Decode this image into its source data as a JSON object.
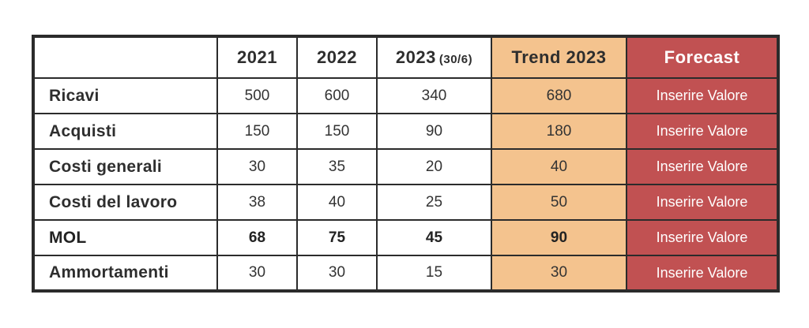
{
  "colors": {
    "trend_bg": "#f4c38e",
    "forecast_bg": "#c15152",
    "forecast_text": "#ffffff",
    "border": "#2b2b2b",
    "text": "#333333",
    "cell_bg": "#ffffff"
  },
  "header": {
    "empty": "",
    "y2021": "2021",
    "y2022": "2022",
    "y2023": "2023",
    "y2023_note": "(30/6)",
    "trend": "Trend 2023",
    "forecast": "Forecast"
  },
  "chart_data": {
    "type": "table",
    "title": "",
    "columns": [
      "",
      "2021",
      "2022",
      "2023 (30/6)",
      "Trend 2023",
      "Forecast"
    ],
    "rows": [
      [
        "Ricavi",
        500,
        600,
        340,
        680,
        "Inserire Valore"
      ],
      [
        "Acquisti",
        150,
        150,
        90,
        180,
        "Inserire Valore"
      ],
      [
        "Costi generali",
        30,
        35,
        20,
        40,
        "Inserire Valore"
      ],
      [
        "Costi del lavoro",
        38,
        40,
        25,
        50,
        "Inserire Valore"
      ],
      [
        "MOL",
        68,
        75,
        45,
        90,
        "Inserire Valore"
      ],
      [
        "Ammortamenti",
        30,
        30,
        15,
        30,
        "Inserire Valore"
      ]
    ],
    "emphasis_row": "MOL",
    "layout_hints": {
      "highlight_columns": {
        "Trend 2023": "#f4c38e",
        "Forecast": "#c15152"
      },
      "forecast_cells_are_placeholders": true
    }
  }
}
